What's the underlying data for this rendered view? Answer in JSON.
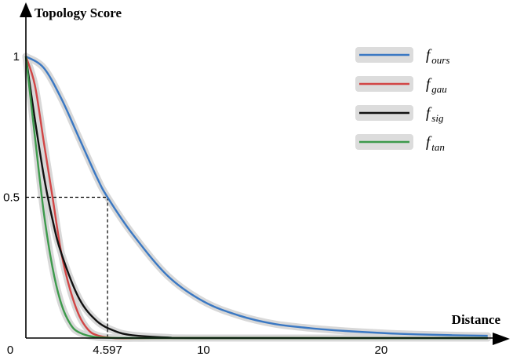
{
  "chart_data": {
    "type": "line",
    "xlabel": "Distance",
    "ylabel": "Topology Score",
    "xlim": [
      0,
      26.5
    ],
    "ylim": [
      0,
      1
    ],
    "x_ticks": [
      {
        "value": 0,
        "label": "0"
      },
      {
        "value": 4.597,
        "label": "4.597"
      },
      {
        "value": 10,
        "label": "10"
      },
      {
        "value": 20,
        "label": "20"
      }
    ],
    "y_ticks": [
      {
        "value": 0.5,
        "label": "0.5"
      },
      {
        "value": 1,
        "label": "1"
      }
    ],
    "grid": false,
    "legend_position": "top-right",
    "annotation": {
      "x": 4.597,
      "y": 0.5,
      "style": "dashed-guide"
    },
    "series": [
      {
        "name": "f",
        "subscript": "ours",
        "color": "#3a78c3",
        "x": [
          0,
          1,
          2,
          3,
          4,
          4.597,
          6,
          8,
          10,
          12,
          14,
          16,
          18,
          20,
          22,
          24,
          26
        ],
        "y": [
          1.0,
          0.96,
          0.85,
          0.71,
          0.57,
          0.5,
          0.37,
          0.22,
          0.13,
          0.08,
          0.05,
          0.035,
          0.025,
          0.018,
          0.013,
          0.01,
          0.008
        ]
      },
      {
        "name": "f",
        "subscript": "gau",
        "color": "#d24545",
        "x": [
          0,
          0.5,
          1,
          1.5,
          2,
          2.5,
          3,
          3.5,
          4,
          5,
          7,
          10,
          26
        ],
        "y": [
          1.0,
          0.9,
          0.7,
          0.5,
          0.3,
          0.17,
          0.08,
          0.03,
          0.01,
          0.0,
          0.0,
          0.0,
          0.0
        ]
      },
      {
        "name": "f",
        "subscript": "sig",
        "color": "#111111",
        "x": [
          0,
          0.5,
          1,
          1.5,
          2,
          3,
          4,
          5,
          6,
          8,
          10,
          26
        ],
        "y": [
          1.0,
          0.78,
          0.58,
          0.42,
          0.3,
          0.14,
          0.06,
          0.025,
          0.01,
          0.002,
          0.0,
          0.0
        ]
      },
      {
        "name": "f",
        "subscript": "tan",
        "color": "#3d9a4c",
        "x": [
          0,
          0.5,
          1,
          1.5,
          2,
          2.5,
          3,
          4,
          6,
          10,
          26
        ],
        "y": [
          1.0,
          0.72,
          0.45,
          0.25,
          0.12,
          0.05,
          0.02,
          0.003,
          0.0,
          0.0,
          0.0
        ]
      }
    ]
  }
}
